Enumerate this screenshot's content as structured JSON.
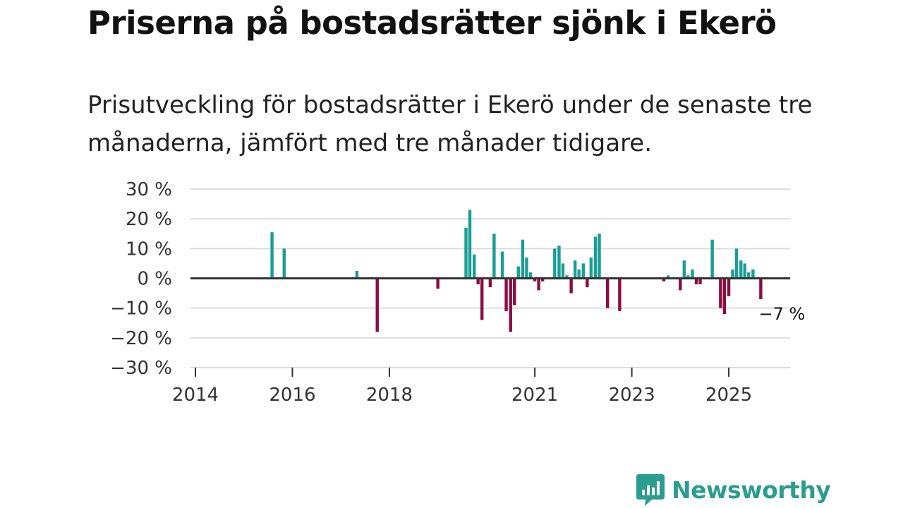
{
  "title": "Priserna på bostadsrätter sjönk i Ekerö",
  "subtitle": "Prisutveckling för bostadsrätter i Ekerö under de senaste tre månaderna, jämfört med tre månader tidigare.",
  "brand": {
    "name": "Newsworthy",
    "icon": "newsworthy-logo-icon"
  },
  "colors": {
    "positive": "#1a9e96",
    "negative": "#8c0c42",
    "grid": "#dddddd",
    "zero_line": "#333333",
    "brand": "#2a9d8f"
  },
  "chart_data": {
    "type": "bar",
    "y_tick_labels": [
      "30 %",
      "20 %",
      "10 %",
      "0 %",
      "−10 %",
      "−20 %",
      "−30 %"
    ],
    "y_ticks": [
      30,
      20,
      10,
      0,
      -10,
      -20,
      -30
    ],
    "ylim": [
      -30,
      30
    ],
    "x_tick_labels": [
      "2014",
      "2016",
      "2018",
      "2021",
      "2023",
      "2025"
    ],
    "x_ticks": [
      2014.0,
      2016.0,
      2018.0,
      2021.0,
      2023.0,
      2025.0
    ],
    "xlim": [
      2013.8,
      2026.2
    ],
    "end_label": "−7 %",
    "unit": "%",
    "points": [
      {
        "x": 2015.58,
        "y": 15.5
      },
      {
        "x": 2015.83,
        "y": 10
      },
      {
        "x": 2017.33,
        "y": 2.5
      },
      {
        "x": 2017.75,
        "y": -18
      },
      {
        "x": 2019.0,
        "y": -3.5
      },
      {
        "x": 2019.58,
        "y": 17
      },
      {
        "x": 2019.66,
        "y": 23
      },
      {
        "x": 2019.75,
        "y": 8
      },
      {
        "x": 2019.83,
        "y": -2
      },
      {
        "x": 2019.91,
        "y": -14
      },
      {
        "x": 2020.08,
        "y": -3
      },
      {
        "x": 2020.16,
        "y": 15
      },
      {
        "x": 2020.33,
        "y": 9
      },
      {
        "x": 2020.41,
        "y": -11
      },
      {
        "x": 2020.5,
        "y": -18
      },
      {
        "x": 2020.58,
        "y": -9
      },
      {
        "x": 2020.66,
        "y": 4
      },
      {
        "x": 2020.75,
        "y": 13
      },
      {
        "x": 2020.83,
        "y": 7
      },
      {
        "x": 2020.91,
        "y": 2
      },
      {
        "x": 2021.0,
        "y": -1
      },
      {
        "x": 2021.08,
        "y": -4
      },
      {
        "x": 2021.16,
        "y": -1
      },
      {
        "x": 2021.41,
        "y": 10
      },
      {
        "x": 2021.5,
        "y": 11
      },
      {
        "x": 2021.58,
        "y": 5
      },
      {
        "x": 2021.66,
        "y": 1
      },
      {
        "x": 2021.75,
        "y": -5
      },
      {
        "x": 2021.83,
        "y": 6
      },
      {
        "x": 2021.91,
        "y": 3
      },
      {
        "x": 2022.0,
        "y": 5
      },
      {
        "x": 2022.08,
        "y": -3
      },
      {
        "x": 2022.16,
        "y": 7
      },
      {
        "x": 2022.25,
        "y": 14
      },
      {
        "x": 2022.33,
        "y": 15
      },
      {
        "x": 2022.5,
        "y": -10
      },
      {
        "x": 2022.75,
        "y": -11
      },
      {
        "x": 2023.66,
        "y": -1
      },
      {
        "x": 2023.75,
        "y": 1
      },
      {
        "x": 2024.0,
        "y": -4
      },
      {
        "x": 2024.08,
        "y": 6
      },
      {
        "x": 2024.16,
        "y": 1
      },
      {
        "x": 2024.25,
        "y": 3
      },
      {
        "x": 2024.33,
        "y": -2
      },
      {
        "x": 2024.41,
        "y": -2
      },
      {
        "x": 2024.66,
        "y": 13
      },
      {
        "x": 2024.83,
        "y": -10
      },
      {
        "x": 2024.91,
        "y": -12
      },
      {
        "x": 2025.0,
        "y": -6
      },
      {
        "x": 2025.08,
        "y": 3
      },
      {
        "x": 2025.16,
        "y": 10
      },
      {
        "x": 2025.25,
        "y": 6
      },
      {
        "x": 2025.33,
        "y": 5
      },
      {
        "x": 2025.41,
        "y": 2
      },
      {
        "x": 2025.5,
        "y": 3
      },
      {
        "x": 2025.66,
        "y": -7
      }
    ]
  }
}
